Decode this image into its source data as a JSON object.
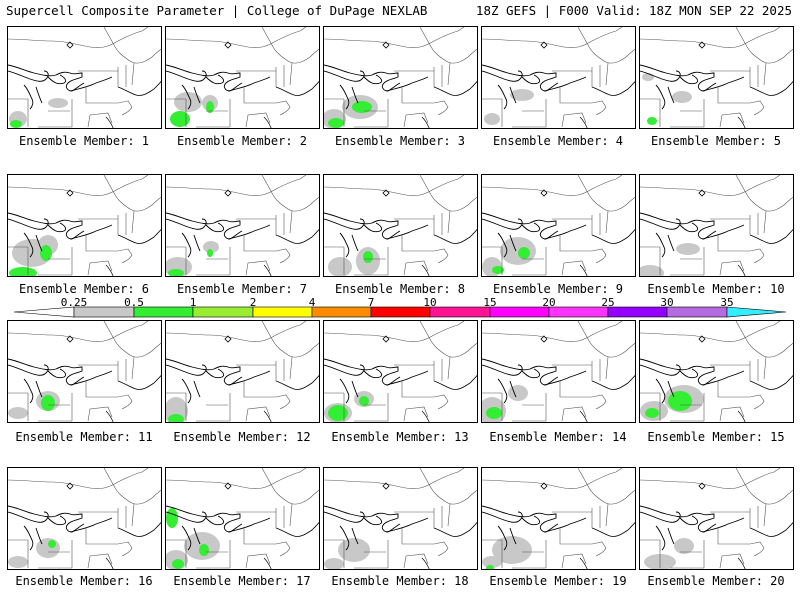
{
  "header": {
    "title_left": "Supercell Composite Parameter | College of DuPage NEXLAB",
    "title_right": "18Z GEFS | F000 Valid: 18Z MON SEP 22 2025"
  },
  "panels": [
    {
      "label": "Ensemble Member: 1"
    },
    {
      "label": "Ensemble Member: 2"
    },
    {
      "label": "Ensemble Member: 3"
    },
    {
      "label": "Ensemble Member: 4"
    },
    {
      "label": "Ensemble Member: 5"
    },
    {
      "label": "Ensemble Member: 6"
    },
    {
      "label": "Ensemble Member: 7"
    },
    {
      "label": "Ensemble Member: 8"
    },
    {
      "label": "Ensemble Member: 9"
    },
    {
      "label": "Ensemble Member: 10"
    },
    {
      "label": "Ensemble Member: 11"
    },
    {
      "label": "Ensemble Member: 12"
    },
    {
      "label": "Ensemble Member: 13"
    },
    {
      "label": "Ensemble Member: 14"
    },
    {
      "label": "Ensemble Member: 15"
    },
    {
      "label": "Ensemble Member: 16"
    },
    {
      "label": "Ensemble Member: 17"
    },
    {
      "label": "Ensemble Member: 18"
    },
    {
      "label": "Ensemble Member: 19"
    },
    {
      "label": "Ensemble Member: 20"
    }
  ],
  "colorbar": {
    "labels": [
      "0.25",
      "0.5",
      "1",
      "2",
      "4",
      "7",
      "10",
      "15",
      "20",
      "25",
      "30",
      "35"
    ],
    "colors": [
      "#ffffff",
      "#c8c8c8",
      "#33ee33",
      "#99ee33",
      "#ffff00",
      "#ff8c00",
      "#ff0000",
      "#ff1493",
      "#ff00ff",
      "#ff33ff",
      "#9400ff",
      "#b36bdf",
      "#33eeff"
    ]
  },
  "map_colors": {
    "gray_fill": "#c8c8c8",
    "green_fill": "#33ee33",
    "border": "#000000",
    "state_line": "#555555"
  }
}
